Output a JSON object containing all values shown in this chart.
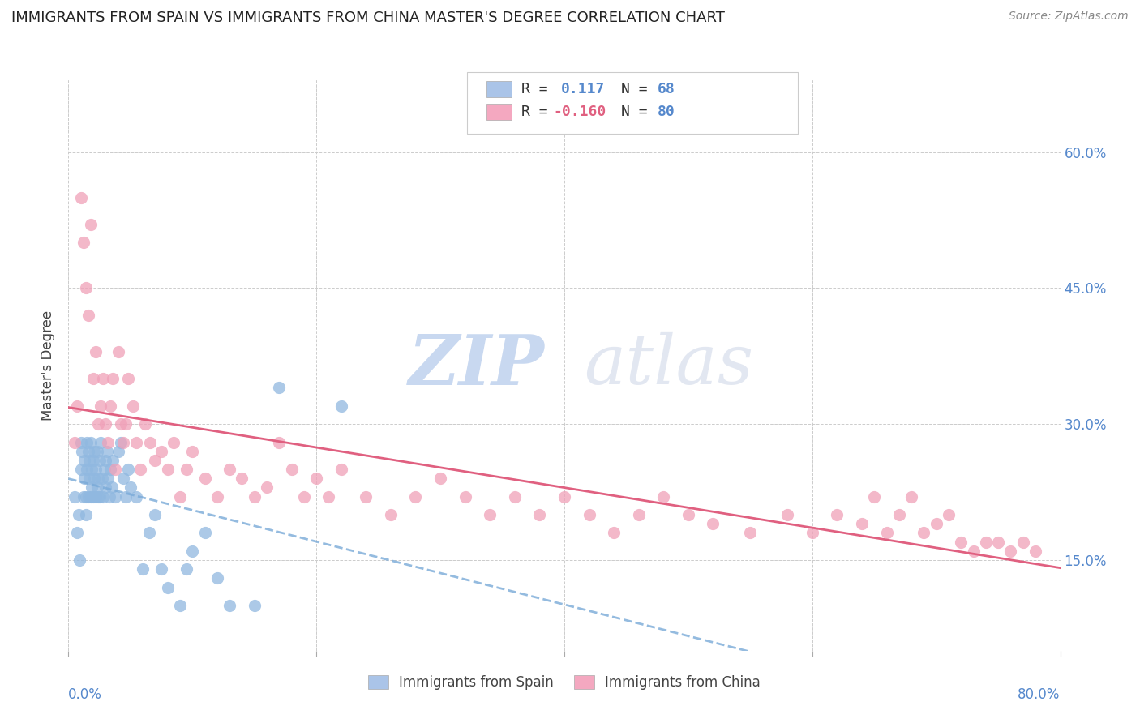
{
  "title": "IMMIGRANTS FROM SPAIN VS IMMIGRANTS FROM CHINA MASTER'S DEGREE CORRELATION CHART",
  "source": "Source: ZipAtlas.com",
  "ylabel": "Master's Degree",
  "ytick_labels": [
    "15.0%",
    "30.0%",
    "45.0%",
    "60.0%"
  ],
  "ytick_values": [
    0.15,
    0.3,
    0.45,
    0.6
  ],
  "xlim": [
    0.0,
    0.8
  ],
  "ylim": [
    0.05,
    0.68
  ],
  "legend_color1": "#aac4e8",
  "legend_color2": "#f4a8c0",
  "scatter_color1": "#90b8e0",
  "scatter_color2": "#f0a0b8",
  "trendline1_color": "#7aaad8",
  "trendline2_color": "#e06080",
  "watermark_zip": "ZIP",
  "watermark_atlas": "atlas",
  "watermark_color": "#c8d8f0",
  "R1": 0.117,
  "N1": 68,
  "R2": -0.16,
  "N2": 80,
  "spain_x": [
    0.005,
    0.007,
    0.008,
    0.009,
    0.01,
    0.01,
    0.011,
    0.012,
    0.013,
    0.013,
    0.014,
    0.014,
    0.015,
    0.015,
    0.016,
    0.016,
    0.017,
    0.017,
    0.018,
    0.018,
    0.019,
    0.019,
    0.02,
    0.02,
    0.021,
    0.021,
    0.022,
    0.022,
    0.023,
    0.023,
    0.024,
    0.024,
    0.025,
    0.025,
    0.026,
    0.027,
    0.028,
    0.029,
    0.03,
    0.03,
    0.031,
    0.032,
    0.033,
    0.034,
    0.035,
    0.036,
    0.038,
    0.04,
    0.042,
    0.044,
    0.046,
    0.048,
    0.05,
    0.055,
    0.06,
    0.065,
    0.07,
    0.075,
    0.08,
    0.09,
    0.095,
    0.1,
    0.11,
    0.12,
    0.13,
    0.15,
    0.17,
    0.22
  ],
  "spain_y": [
    0.22,
    0.18,
    0.2,
    0.15,
    0.25,
    0.28,
    0.27,
    0.22,
    0.24,
    0.26,
    0.22,
    0.2,
    0.28,
    0.25,
    0.22,
    0.27,
    0.24,
    0.26,
    0.22,
    0.28,
    0.23,
    0.25,
    0.22,
    0.26,
    0.27,
    0.24,
    0.22,
    0.25,
    0.23,
    0.27,
    0.22,
    0.24,
    0.26,
    0.22,
    0.28,
    0.24,
    0.22,
    0.25,
    0.26,
    0.23,
    0.27,
    0.24,
    0.22,
    0.25,
    0.23,
    0.26,
    0.22,
    0.27,
    0.28,
    0.24,
    0.22,
    0.25,
    0.23,
    0.22,
    0.14,
    0.18,
    0.2,
    0.14,
    0.12,
    0.1,
    0.14,
    0.16,
    0.18,
    0.13,
    0.1,
    0.1,
    0.34,
    0.32
  ],
  "china_x": [
    0.005,
    0.007,
    0.01,
    0.012,
    0.014,
    0.016,
    0.018,
    0.02,
    0.022,
    0.024,
    0.026,
    0.028,
    0.03,
    0.032,
    0.034,
    0.036,
    0.038,
    0.04,
    0.042,
    0.044,
    0.046,
    0.048,
    0.052,
    0.055,
    0.058,
    0.062,
    0.066,
    0.07,
    0.075,
    0.08,
    0.085,
    0.09,
    0.095,
    0.1,
    0.11,
    0.12,
    0.13,
    0.14,
    0.15,
    0.16,
    0.17,
    0.18,
    0.19,
    0.2,
    0.21,
    0.22,
    0.24,
    0.26,
    0.28,
    0.3,
    0.32,
    0.34,
    0.36,
    0.38,
    0.4,
    0.42,
    0.44,
    0.46,
    0.48,
    0.5,
    0.52,
    0.55,
    0.58,
    0.6,
    0.62,
    0.64,
    0.65,
    0.66,
    0.67,
    0.68,
    0.69,
    0.7,
    0.71,
    0.72,
    0.73,
    0.74,
    0.75,
    0.76,
    0.77,
    0.78
  ],
  "china_y": [
    0.28,
    0.32,
    0.55,
    0.5,
    0.45,
    0.42,
    0.52,
    0.35,
    0.38,
    0.3,
    0.32,
    0.35,
    0.3,
    0.28,
    0.32,
    0.35,
    0.25,
    0.38,
    0.3,
    0.28,
    0.3,
    0.35,
    0.32,
    0.28,
    0.25,
    0.3,
    0.28,
    0.26,
    0.27,
    0.25,
    0.28,
    0.22,
    0.25,
    0.27,
    0.24,
    0.22,
    0.25,
    0.24,
    0.22,
    0.23,
    0.28,
    0.25,
    0.22,
    0.24,
    0.22,
    0.25,
    0.22,
    0.2,
    0.22,
    0.24,
    0.22,
    0.2,
    0.22,
    0.2,
    0.22,
    0.2,
    0.18,
    0.2,
    0.22,
    0.2,
    0.19,
    0.18,
    0.2,
    0.18,
    0.2,
    0.19,
    0.22,
    0.18,
    0.2,
    0.22,
    0.18,
    0.19,
    0.2,
    0.17,
    0.16,
    0.17,
    0.17,
    0.16,
    0.17,
    0.16
  ]
}
